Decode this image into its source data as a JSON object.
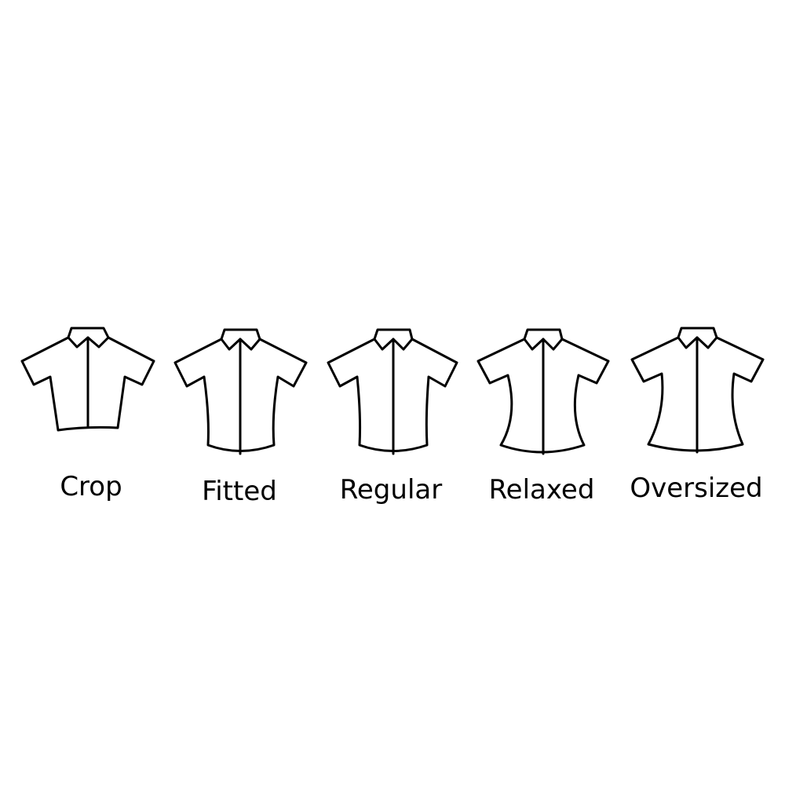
{
  "fits": [
    {
      "label": "Crop"
    },
    {
      "label": "Fitted"
    },
    {
      "label": "Regular"
    },
    {
      "label": "Relaxed"
    },
    {
      "label": "Oversized"
    }
  ],
  "colors": {
    "background": "#ffffff",
    "stroke": "#000000",
    "text": "#000000"
  },
  "icons": [
    "shirt-icon"
  ]
}
